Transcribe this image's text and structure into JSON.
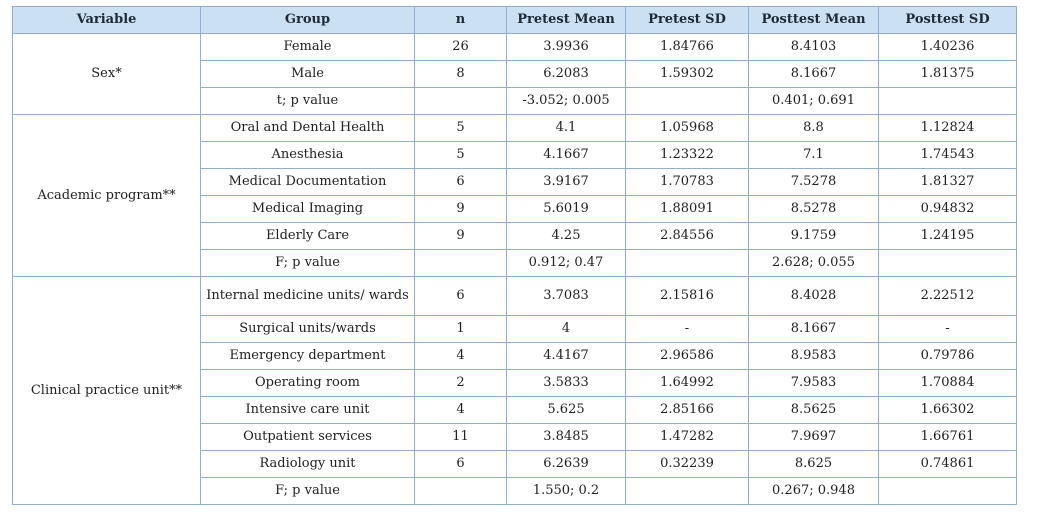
{
  "headers": [
    "Variable",
    "Group",
    "n",
    "Pretest Mean",
    "Pretest SD",
    "Posttest Mean",
    "Posttest SD"
  ],
  "sections": [
    {
      "variable": "Sex*",
      "rows": [
        {
          "group": "Female",
          "n": "26",
          "pre_mean": "3.9936",
          "pre_sd": "1.84766",
          "post_mean": "8.4103",
          "post_sd": "1.40236"
        },
        {
          "group": "Male",
          "n": "8",
          "pre_mean": "6.2083",
          "pre_sd": "1.59302",
          "post_mean": "8.1667",
          "post_sd": "1.81375"
        },
        {
          "group": "t; p value",
          "n": "",
          "pre_mean": "-3.052; 0.005",
          "pre_sd": "",
          "post_mean": "0.401; 0.691",
          "post_sd": ""
        }
      ]
    },
    {
      "variable": "Academic program**",
      "rows": [
        {
          "group": "Oral and Dental Health",
          "n": "5",
          "pre_mean": "4.1",
          "pre_sd": "1.05968",
          "post_mean": "8.8",
          "post_sd": "1.12824"
        },
        {
          "group": "Anesthesia",
          "n": "5",
          "pre_mean": "4.1667",
          "pre_sd": "1.23322",
          "post_mean": "7.1",
          "post_sd": "1.74543"
        },
        {
          "group": "Medical Documentation",
          "n": "6",
          "pre_mean": "3.9167",
          "pre_sd": "1.70783",
          "post_mean": "7.5278",
          "post_sd": "1.81327"
        },
        {
          "group": "Medical Imaging",
          "n": "9",
          "pre_mean": "5.6019",
          "pre_sd": "1.88091",
          "post_mean": "8.5278",
          "post_sd": "0.94832"
        },
        {
          "group": "Elderly Care",
          "n": "9",
          "pre_mean": "4.25",
          "pre_sd": "2.84556",
          "post_mean": "9.1759",
          "post_sd": "1.24195"
        },
        {
          "group": "F; p value",
          "n": "",
          "pre_mean": "0.912; 0.47",
          "pre_sd": "",
          "post_mean": "2.628; 0.055",
          "post_sd": ""
        }
      ]
    },
    {
      "variable": "Clinical practice unit**",
      "rows": [
        {
          "group": "Internal medicine units/ wards",
          "n": "6",
          "pre_mean": "3.7083",
          "pre_sd": "2.15816",
          "post_mean": "8.4028",
          "post_sd": "2.22512",
          "tall": true
        },
        {
          "group": "Surgical units/wards",
          "n": "1",
          "pre_mean": "4",
          "pre_sd": "-",
          "post_mean": "8.1667",
          "post_sd": "-"
        },
        {
          "group": "Emergency department",
          "n": "4",
          "pre_mean": "4.4167",
          "pre_sd": "2.96586",
          "post_mean": "8.9583",
          "post_sd": "0.79786"
        },
        {
          "group": "Operating room",
          "n": "2",
          "pre_mean": "3.5833",
          "pre_sd": "1.64992",
          "post_mean": "7.9583",
          "post_sd": "1.70884"
        },
        {
          "group": "Intensive care unit",
          "n": "4",
          "pre_mean": "5.625",
          "pre_sd": "2.85166",
          "post_mean": "8.5625",
          "post_sd": "1.66302"
        },
        {
          "group": "Outpatient services",
          "n": "11",
          "pre_mean": "3.8485",
          "pre_sd": "1.47282",
          "post_mean": "7.9697",
          "post_sd": "1.66761"
        },
        {
          "group": "Radiology unit",
          "n": "6",
          "pre_mean": "6.2639",
          "pre_sd": "0.32239",
          "post_mean": "8.625",
          "post_sd": "0.74861"
        },
        {
          "group": "F; p value",
          "n": "",
          "pre_mean": "1.550; 0.2",
          "pre_sd": "",
          "post_mean": "0.267; 0.948",
          "post_sd": ""
        }
      ]
    }
  ]
}
